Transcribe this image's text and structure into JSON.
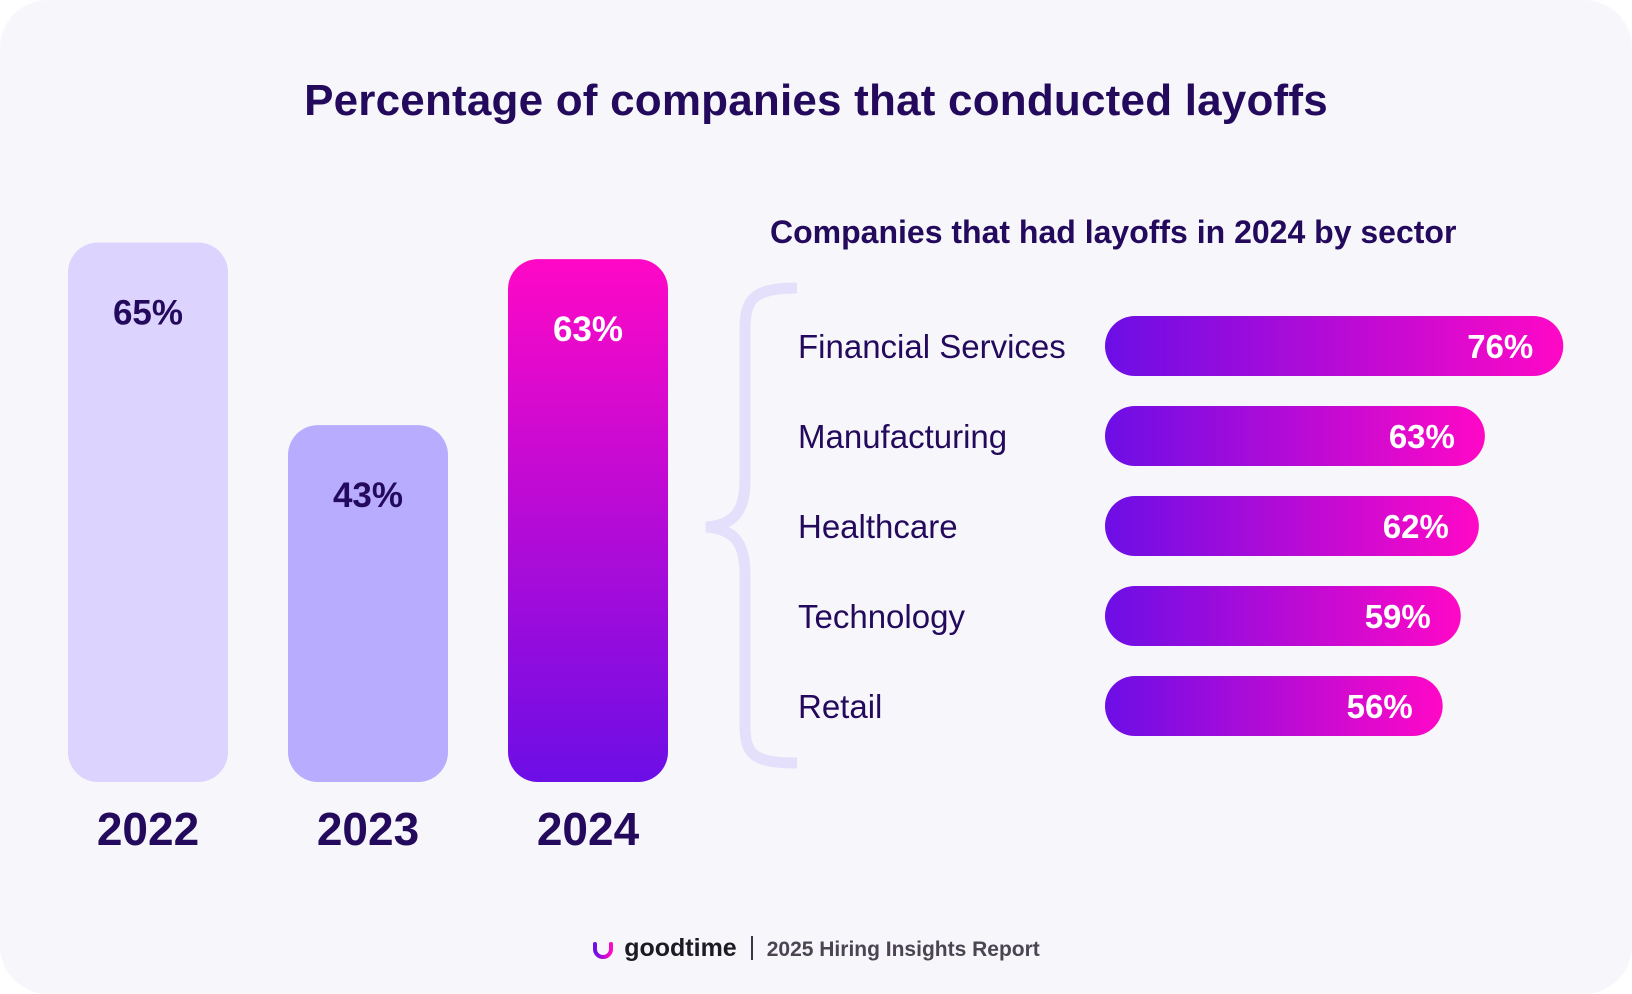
{
  "title": "Percentage of companies that conducted layoffs",
  "colors": {
    "dark_text": "#240a5c",
    "bar_2022": "#dcd3fe",
    "bar_2023": "#b7acfd",
    "gradient_purple": "#6c0ee6",
    "gradient_pink": "#ff08c6",
    "bracket": "#e4e0fb"
  },
  "footer": {
    "brand": "goodtime",
    "separator": "|",
    "report": "2025 Hiring Insights Report",
    "logo_icon": "goodtime-logo-icon"
  },
  "chart_data": [
    {
      "type": "bar",
      "orientation": "vertical",
      "title": "",
      "categories": [
        "2022",
        "2023",
        "2024"
      ],
      "values": [
        65,
        43,
        63
      ],
      "labels": [
        "65%",
        "43%",
        "63%"
      ],
      "unit": "%"
    },
    {
      "type": "bar",
      "orientation": "horizontal",
      "title": "Companies that had layoffs in 2024 by sector",
      "categories": [
        "Financial Services",
        "Manufacturing",
        "Healthcare",
        "Technology",
        "Retail"
      ],
      "values": [
        76,
        63,
        62,
        59,
        56
      ],
      "labels": [
        "76%",
        "63%",
        "62%",
        "59%",
        "56%"
      ],
      "unit": "%"
    }
  ]
}
